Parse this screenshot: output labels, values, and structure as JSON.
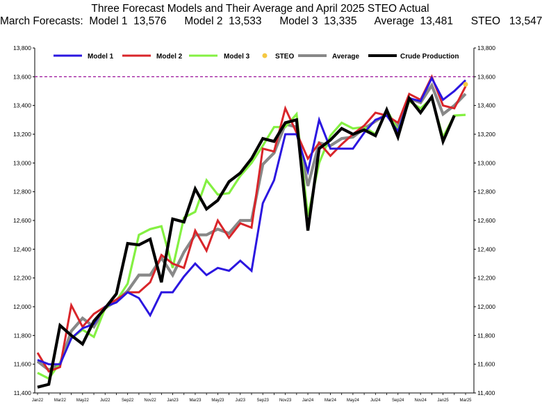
{
  "chart_data": {
    "type": "line",
    "title": "Three Forecast Models and Their Average and April 2025 STEO Actual",
    "subtitle": "March Forecasts:  Model 1  13,576      Model 2  13,533      Model 3  13,335      Average  13,481      STEO   13,547",
    "xlabel": "",
    "ylabel": "",
    "ylim": [
      11400,
      13800
    ],
    "yticks": [
      11400,
      11600,
      11800,
      12000,
      12200,
      12400,
      12600,
      12800,
      13000,
      13200,
      13400,
      13600,
      13800
    ],
    "ytick_labels": [
      "11,400",
      "11,600",
      "11,800",
      "12,000",
      "12,200",
      "12,400",
      "12,600",
      "12,800",
      "13,000",
      "13,200",
      "13,400",
      "13,600",
      "13,800"
    ],
    "x_labels": [
      "Jan22",
      "Mar22",
      "May22",
      "Jul22",
      "Sep22",
      "Nov22",
      "Jan23",
      "Mar23",
      "May23",
      "Jul23",
      "Sep23",
      "Nov23",
      "Jan24",
      "Mar24",
      "May24",
      "Jul24",
      "Sep24",
      "Nov24",
      "Jan25",
      "Mar25"
    ],
    "x_months": [
      "Jan22",
      "Feb22",
      "Mar22",
      "Apr22",
      "May22",
      "Jun22",
      "Jul22",
      "Aug22",
      "Sep22",
      "Oct22",
      "Nov22",
      "Dec22",
      "Jan23",
      "Feb23",
      "Mar23",
      "Apr23",
      "May23",
      "Jun23",
      "Jul23",
      "Aug23",
      "Sep23",
      "Oct23",
      "Nov23",
      "Dec23",
      "Jan24",
      "Feb24",
      "Mar24",
      "Apr24",
      "May24",
      "Jun24",
      "Jul24",
      "Aug24",
      "Sep24",
      "Oct24",
      "Nov24",
      "Dec24",
      "Jan25",
      "Feb25",
      "Mar25"
    ],
    "reference_line": {
      "value": 13600,
      "color": "#a020a0",
      "style": "dashed"
    },
    "grid": false,
    "legend_position": "top",
    "series": [
      {
        "name": "Model 1",
        "color": "#2b16e0",
        "values": [
          11630,
          11600,
          11600,
          11780,
          11850,
          11880,
          12000,
          12030,
          12100,
          12060,
          11940,
          12100,
          12100,
          12210,
          12300,
          12220,
          12270,
          12250,
          12320,
          12250,
          12720,
          12880,
          13200,
          13200,
          12940,
          13300,
          13100,
          13100,
          13100,
          13210,
          13300,
          13330,
          13220,
          13450,
          13430,
          13590,
          13440,
          13500,
          13576
        ]
      },
      {
        "name": "Model 2",
        "color": "#d9252a",
        "values": [
          11680,
          11550,
          11580,
          12010,
          11860,
          11950,
          12000,
          12050,
          12100,
          12100,
          12170,
          12360,
          12300,
          12270,
          12530,
          12390,
          12600,
          12480,
          12580,
          12550,
          13100,
          13080,
          13380,
          13210,
          13030,
          13140,
          13050,
          13130,
          13200,
          13260,
          13350,
          13330,
          13280,
          13480,
          13440,
          13600,
          13400,
          13380,
          13533
        ]
      },
      {
        "name": "Model  3",
        "color": "#84f042",
        "values": [
          11540,
          11500,
          11610,
          11780,
          11840,
          11790,
          11990,
          12040,
          12160,
          12500,
          12540,
          12560,
          12270,
          12620,
          12660,
          12880,
          12780,
          12790,
          12910,
          13000,
          13120,
          13250,
          13250,
          13340,
          12630,
          13000,
          13190,
          13280,
          13240,
          13250,
          13200,
          13370,
          13230,
          13430,
          13380,
          13450,
          13180,
          13330,
          13335
        ]
      },
      {
        "name": "Average",
        "color": "#888888",
        "values": [
          11620,
          11560,
          11600,
          11830,
          11920,
          11860,
          11990,
          12040,
          12110,
          12220,
          12220,
          12340,
          12220,
          12380,
          12500,
          12500,
          12540,
          12510,
          12600,
          12600,
          12990,
          13070,
          13270,
          13250,
          12840,
          13140,
          13120,
          13170,
          13180,
          13240,
          13290,
          13340,
          13250,
          13450,
          13420,
          13540,
          13340,
          13400,
          13481
        ]
      },
      {
        "name": "Crude Production",
        "color": "#000000",
        "values": [
          11440,
          11460,
          11870,
          11800,
          11740,
          11900,
          11990,
          12090,
          12440,
          12430,
          12470,
          12170,
          12610,
          12590,
          12820,
          12680,
          12740,
          12870,
          12930,
          13030,
          13170,
          13150,
          13280,
          13300,
          12530,
          13100,
          13160,
          13240,
          13200,
          13230,
          13190,
          13370,
          13180,
          13450,
          13350,
          13460,
          13150,
          13330,
          null
        ]
      }
    ],
    "steo_point": {
      "name": "STEO",
      "color": "#f5c842",
      "x": "Mar25",
      "value": 13547
    }
  }
}
